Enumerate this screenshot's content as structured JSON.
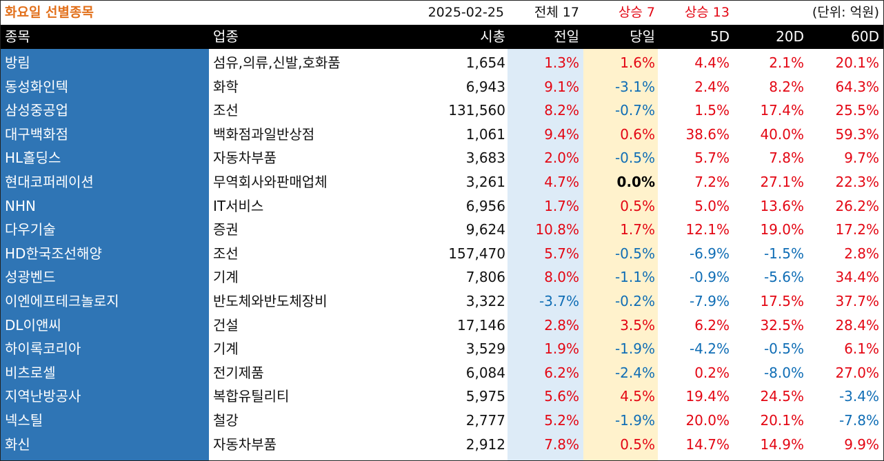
{
  "header": {
    "title": "화요일 선별종목",
    "date": "2025-02-25",
    "total": "전체 17",
    "up_count_1": "상승 7",
    "up_count_2": "상승 13",
    "unit": "(단위: 억원)"
  },
  "columns": {
    "name": "종목",
    "industry": "업종",
    "market_cap": "시총",
    "prev_day": "전일",
    "today": "당일",
    "d5": "5D",
    "d20": "20D",
    "d60": "60D"
  },
  "colors": {
    "title": "#e2701b",
    "positive": "#e30613",
    "negative": "#0f6db5",
    "name_band": "#2f75b5",
    "prev_band": "#ddebf7",
    "today_band": "#fff2cc"
  },
  "rows": [
    {
      "name": "방림",
      "industry": "섬유,의류,신발,호화품",
      "market_cap": "1,654",
      "prev_day": "1.3%",
      "today": "1.6%",
      "d5": "4.4%",
      "d20": "2.1%",
      "d60": "20.1%"
    },
    {
      "name": "동성화인텍",
      "industry": "화학",
      "market_cap": "6,943",
      "prev_day": "9.1%",
      "today": "-3.1%",
      "d5": "2.4%",
      "d20": "8.2%",
      "d60": "64.3%"
    },
    {
      "name": "삼성중공업",
      "industry": "조선",
      "market_cap": "131,560",
      "prev_day": "8.2%",
      "today": "-0.7%",
      "d5": "1.5%",
      "d20": "17.4%",
      "d60": "25.5%"
    },
    {
      "name": "대구백화점",
      "industry": "백화점과일반상점",
      "market_cap": "1,061",
      "prev_day": "9.4%",
      "today": "0.6%",
      "d5": "38.6%",
      "d20": "40.0%",
      "d60": "59.3%"
    },
    {
      "name": "HL홀딩스",
      "industry": "자동차부품",
      "market_cap": "3,683",
      "prev_day": "2.0%",
      "today": "-0.5%",
      "d5": "5.7%",
      "d20": "7.8%",
      "d60": "9.7%"
    },
    {
      "name": "현대코퍼레이션",
      "industry": "무역회사와판매업체",
      "market_cap": "3,261",
      "prev_day": "4.7%",
      "today": "0.0%",
      "d5": "7.2%",
      "d20": "27.1%",
      "d60": "22.3%"
    },
    {
      "name": "NHN",
      "industry": "IT서비스",
      "market_cap": "6,956",
      "prev_day": "1.7%",
      "today": "0.5%",
      "d5": "5.0%",
      "d20": "13.6%",
      "d60": "26.2%"
    },
    {
      "name": "다우기술",
      "industry": "증권",
      "market_cap": "9,624",
      "prev_day": "10.8%",
      "today": "1.7%",
      "d5": "12.1%",
      "d20": "19.0%",
      "d60": "17.2%"
    },
    {
      "name": "HD한국조선해양",
      "industry": "조선",
      "market_cap": "157,470",
      "prev_day": "5.7%",
      "today": "-0.5%",
      "d5": "-6.9%",
      "d20": "-1.5%",
      "d60": "2.8%"
    },
    {
      "name": "성광벤드",
      "industry": "기계",
      "market_cap": "7,806",
      "prev_day": "8.0%",
      "today": "-1.1%",
      "d5": "-0.9%",
      "d20": "-5.6%",
      "d60": "34.4%"
    },
    {
      "name": "이엔에프테크놀로지",
      "industry": "반도체와반도체장비",
      "market_cap": "3,322",
      "prev_day": "-3.7%",
      "today": "-0.2%",
      "d5": "-7.9%",
      "d20": "17.5%",
      "d60": "37.7%"
    },
    {
      "name": "DL이앤씨",
      "industry": "건설",
      "market_cap": "17,146",
      "prev_day": "2.8%",
      "today": "3.5%",
      "d5": "6.2%",
      "d20": "32.5%",
      "d60": "28.4%"
    },
    {
      "name": "하이록코리아",
      "industry": "기계",
      "market_cap": "3,529",
      "prev_day": "1.9%",
      "today": "-1.9%",
      "d5": "-4.2%",
      "d20": "-0.5%",
      "d60": "6.1%"
    },
    {
      "name": "비츠로셀",
      "industry": "전기제품",
      "market_cap": "6,084",
      "prev_day": "6.2%",
      "today": "-2.4%",
      "d5": "0.2%",
      "d20": "-8.0%",
      "d60": "27.0%"
    },
    {
      "name": "지역난방공사",
      "industry": "복합유틸리티",
      "market_cap": "5,975",
      "prev_day": "5.6%",
      "today": "4.5%",
      "d5": "19.4%",
      "d20": "24.5%",
      "d60": "-3.4%"
    },
    {
      "name": "넥스틸",
      "industry": "철강",
      "market_cap": "2,777",
      "prev_day": "5.2%",
      "today": "-1.9%",
      "d5": "20.0%",
      "d20": "20.1%",
      "d60": "-7.8%"
    },
    {
      "name": "화신",
      "industry": "자동차부품",
      "market_cap": "2,912",
      "prev_day": "7.8%",
      "today": "0.5%",
      "d5": "14.7%",
      "d20": "14.9%",
      "d60": "9.9%"
    }
  ]
}
